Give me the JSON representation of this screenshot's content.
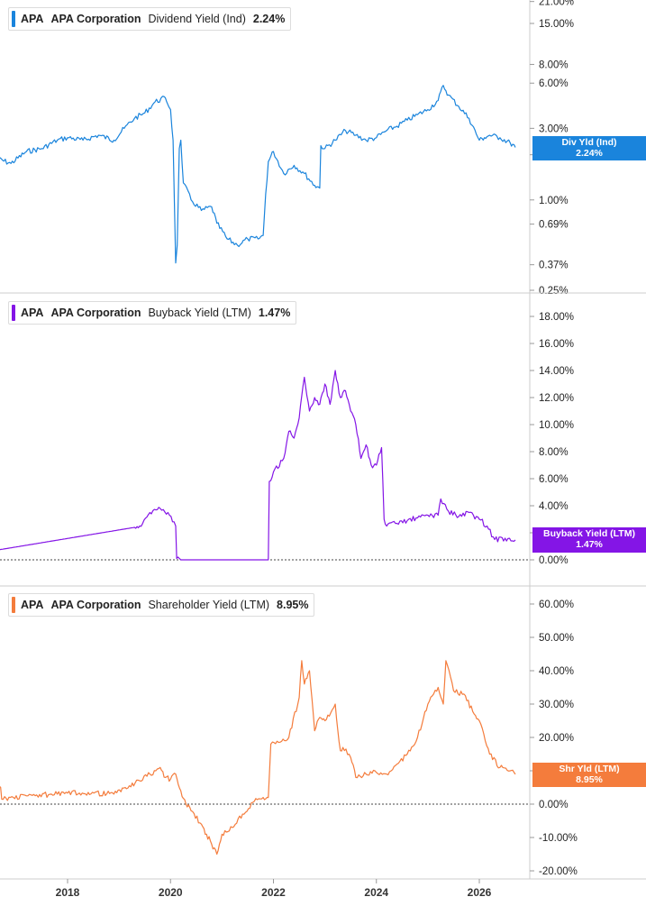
{
  "panels": [
    {
      "ticker": "APA",
      "company": "APA Corporation",
      "metric": "Dividend Yield (Ind)",
      "value": "2.24%",
      "color": "#1a84dc",
      "tag_label": "Div Yld (Ind)",
      "tag_value": "2.24%"
    },
    {
      "ticker": "APA",
      "company": "APA Corporation",
      "metric": "Buyback Yield (LTM)",
      "value": "1.47%",
      "color": "#8415e6",
      "tag_label": "Buyback Yield (LTM)",
      "tag_value": "1.47%"
    },
    {
      "ticker": "APA",
      "company": "APA Corporation",
      "metric": "Shareholder Yield (LTM)",
      "value": "8.95%",
      "color": "#f47c3c",
      "tag_label": "Shr Yld (LTM)",
      "tag_value": "8.95%"
    }
  ],
  "chart_data": [
    {
      "type": "line",
      "title": "APA APA Corporation Dividend Yield (Ind) 2.24%",
      "y_scale": "log",
      "y_ticks": [
        "21.00%",
        "15.00%",
        "8.00%",
        "6.00%",
        "3.00%",
        "2.00%",
        "1.00%",
        "0.69%",
        "0.37%",
        "0.25%"
      ],
      "y_tick_values": [
        21,
        15,
        8,
        6,
        3,
        2,
        1,
        0.69,
        0.37,
        0.25
      ],
      "ylim": [
        0.25,
        21
      ],
      "series": [
        {
          "name": "Dividend Yield (Ind)",
          "color": "#1a84dc",
          "x": [
            2016.6,
            2016.9,
            2017.2,
            2017.5,
            2017.8,
            2018.0,
            2018.3,
            2018.6,
            2018.9,
            2019.1,
            2019.3,
            2019.5,
            2019.7,
            2019.9,
            2020.0,
            2020.05,
            2020.1,
            2020.13,
            2020.17,
            2020.2,
            2020.25,
            2020.4,
            2020.6,
            2020.8,
            2020.9,
            2021.1,
            2021.3,
            2021.5,
            2021.7,
            2021.8,
            2021.85,
            2021.9,
            2022.0,
            2022.2,
            2022.4,
            2022.6,
            2022.8,
            2022.9,
            2022.92,
            2023.0,
            2023.2,
            2023.4,
            2023.6,
            2023.8,
            2024.0,
            2024.2,
            2024.4,
            2024.6,
            2024.8,
            2025.0,
            2025.2,
            2025.3,
            2025.4,
            2025.6,
            2025.8,
            2026.0,
            2026.1,
            2026.2,
            2026.4,
            2026.6,
            2026.7
          ],
          "y": [
            1.9,
            1.75,
            2.1,
            2.2,
            2.5,
            2.6,
            2.5,
            2.7,
            2.5,
            3.0,
            3.5,
            3.8,
            4.5,
            4.8,
            4.0,
            2.5,
            0.38,
            0.5,
            2.2,
            2.5,
            1.3,
            1.0,
            0.85,
            0.9,
            0.7,
            0.55,
            0.5,
            0.55,
            0.55,
            0.58,
            1.1,
            1.8,
            2.1,
            1.5,
            1.7,
            1.5,
            1.25,
            1.2,
            2.3,
            2.2,
            2.5,
            2.9,
            2.7,
            2.5,
            2.6,
            2.9,
            3.1,
            3.4,
            3.7,
            4.0,
            4.6,
            5.8,
            5.0,
            4.2,
            3.5,
            2.5,
            2.6,
            2.7,
            2.6,
            2.4,
            2.24
          ]
        }
      ],
      "xlim": [
        2016.6,
        2027.25
      ]
    },
    {
      "type": "line",
      "title": "APA APA Corporation Buyback Yield (LTM) 1.47%",
      "y_ticks": [
        "18.00%",
        "16.00%",
        "14.00%",
        "12.00%",
        "10.00%",
        "8.00%",
        "6.00%",
        "4.00%",
        "2.00%",
        "0.00%"
      ],
      "y_tick_values": [
        18,
        16,
        14,
        12,
        10,
        8,
        6,
        4,
        2,
        0
      ],
      "ylim": [
        0,
        18.5
      ],
      "series": [
        {
          "name": "Buyback Yield (LTM)",
          "color": "#8415e6",
          "x": [
            2016.6,
            2019.3,
            2019.4,
            2019.6,
            2019.8,
            2019.95,
            2020.1,
            2020.12,
            2020.2,
            2021.5,
            2021.9,
            2021.92,
            2022.0,
            2022.2,
            2022.3,
            2022.4,
            2022.5,
            2022.6,
            2022.7,
            2022.8,
            2022.9,
            2023.0,
            2023.1,
            2023.2,
            2023.3,
            2023.4,
            2023.5,
            2023.6,
            2023.7,
            2023.8,
            2023.9,
            2024.0,
            2024.1,
            2024.15,
            2024.2,
            2024.4,
            2024.6,
            2024.8,
            2025.0,
            2025.2,
            2025.25,
            2025.4,
            2025.6,
            2025.8,
            2026.0,
            2026.15,
            2026.3,
            2026.5,
            2026.7
          ],
          "y": [
            0.7,
            2.4,
            2.5,
            3.5,
            3.8,
            3.5,
            2.5,
            0.1,
            0.0,
            0.0,
            0.0,
            5.8,
            6.5,
            7.5,
            9.5,
            9.0,
            10.5,
            13.5,
            11.0,
            12.0,
            11.5,
            13.0,
            11.5,
            14.0,
            12.0,
            12.5,
            11.0,
            10.0,
            7.5,
            8.5,
            7.0,
            7.0,
            8.3,
            3.0,
            2.5,
            2.7,
            2.9,
            3.1,
            3.3,
            3.3,
            4.5,
            3.6,
            3.2,
            3.5,
            3.0,
            2.5,
            1.5,
            1.6,
            1.47
          ]
        }
      ],
      "xlim": [
        2016.6,
        2027.25
      ]
    },
    {
      "type": "line",
      "title": "APA APA Corporation Shareholder Yield (LTM) 8.95%",
      "y_ticks": [
        "60.00%",
        "50.00%",
        "40.00%",
        "30.00%",
        "20.00%",
        "10.00%",
        "0.00%",
        "-10.00%",
        "-20.00%"
      ],
      "y_tick_values": [
        60,
        50,
        40,
        30,
        20,
        10,
        0,
        -10,
        -20
      ],
      "ylim": [
        -20.5,
        64
      ],
      "series": [
        {
          "name": "Shareholder Yield (LTM)",
          "color": "#f47c3c",
          "x": [
            2016.6,
            2016.7,
            2016.72,
            2017.2,
            2017.8,
            2018.4,
            2018.9,
            2019.2,
            2019.4,
            2019.6,
            2019.8,
            2019.9,
            2020.0,
            2020.1,
            2020.2,
            2020.3,
            2020.4,
            2020.6,
            2020.7,
            2020.8,
            2020.9,
            2021.0,
            2021.2,
            2021.4,
            2021.6,
            2021.8,
            2021.9,
            2021.95,
            2022.1,
            2022.3,
            2022.5,
            2022.55,
            2022.6,
            2022.7,
            2022.8,
            2022.9,
            2023.0,
            2023.2,
            2023.3,
            2023.35,
            2023.5,
            2023.6,
            2023.8,
            2024.0,
            2024.2,
            2024.4,
            2024.6,
            2024.8,
            2025.0,
            2025.2,
            2025.3,
            2025.35,
            2025.5,
            2025.7,
            2025.9,
            2026.0,
            2026.2,
            2026.4,
            2026.6,
            2026.7
          ],
          "y": [
            6.0,
            5.0,
            1.5,
            2.5,
            3.0,
            3.5,
            3.0,
            5.5,
            7.0,
            9.0,
            11.0,
            8.0,
            7.5,
            9.0,
            4.0,
            0.0,
            -2.0,
            -6.0,
            -9.0,
            -12.0,
            -15.0,
            -9.0,
            -7.0,
            -3.0,
            0.5,
            2.0,
            2.0,
            18.0,
            18.5,
            20.0,
            32.0,
            43.0,
            36.0,
            40.0,
            22.0,
            26.0,
            25.0,
            30.0,
            16.0,
            17.0,
            14.0,
            8.0,
            9.0,
            9.5,
            9.0,
            12.0,
            15.0,
            20.0,
            30.0,
            35.0,
            30.0,
            43.0,
            34.0,
            33.0,
            27.0,
            25.0,
            15.0,
            11.0,
            10.0,
            8.95
          ]
        }
      ],
      "xlim": [
        2016.6,
        2027.25
      ]
    }
  ],
  "x_axis": {
    "ticks": [
      "2018",
      "2020",
      "2022",
      "2024",
      "2026"
    ],
    "tick_values": [
      2018,
      2020,
      2022,
      2024,
      2026
    ]
  },
  "colors": {
    "grid_line": "#cccccc",
    "zero_line": "#444444",
    "tick_text": "#222222"
  }
}
